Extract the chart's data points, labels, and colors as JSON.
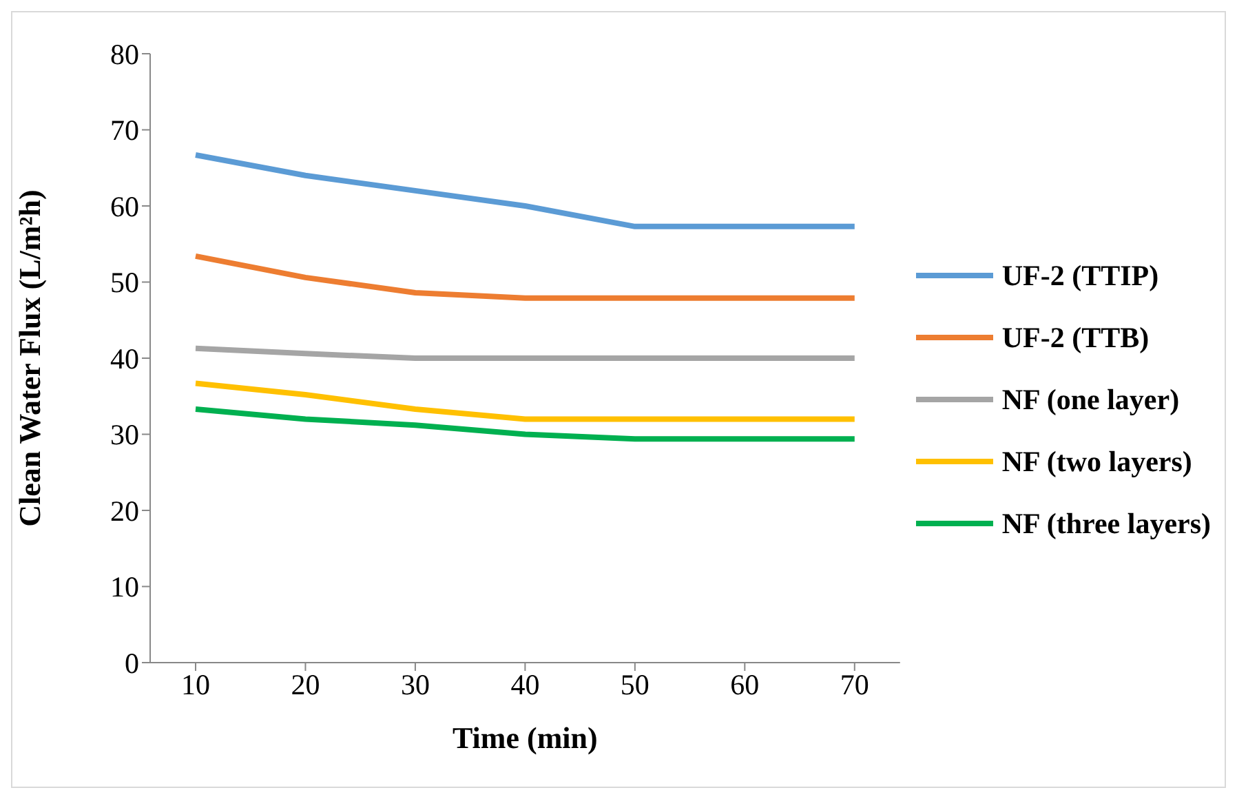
{
  "chart_data": {
    "type": "line",
    "xlabel": "Time (min)",
    "ylabel": "Clean Water Flux (L/m²h)",
    "categories": [
      "10",
      "20",
      "30",
      "40",
      "50",
      "60",
      "70"
    ],
    "ylim": [
      0,
      80
    ],
    "yticks": [
      0,
      10,
      20,
      30,
      40,
      50,
      60,
      70,
      80
    ],
    "grid": false,
    "legend": "right",
    "marker": "none",
    "line_style": "solid",
    "series": [
      {
        "name": "UF-2 (TTIP)",
        "color": "#5b9bd5",
        "values": [
          66.7,
          64,
          62,
          60,
          57.3,
          57.3,
          57.3
        ]
      },
      {
        "name": "UF-2 (TTB)",
        "color": "#ed7d31",
        "values": [
          53.4,
          50.6,
          48.6,
          47.9,
          47.9,
          47.9,
          47.9
        ]
      },
      {
        "name": "NF (one layer)",
        "color": "#a5a5a5",
        "values": [
          41.3,
          40.6,
          40,
          40,
          40,
          40,
          40
        ]
      },
      {
        "name": "NF (two layers)",
        "color": "#ffc000",
        "values": [
          36.7,
          35.2,
          33.3,
          32,
          32,
          32,
          32
        ]
      },
      {
        "name": "NF (three layers)",
        "color": "#00b050",
        "values": [
          33.3,
          32,
          31.2,
          30,
          29.4,
          29.4,
          29.4
        ]
      }
    ]
  }
}
